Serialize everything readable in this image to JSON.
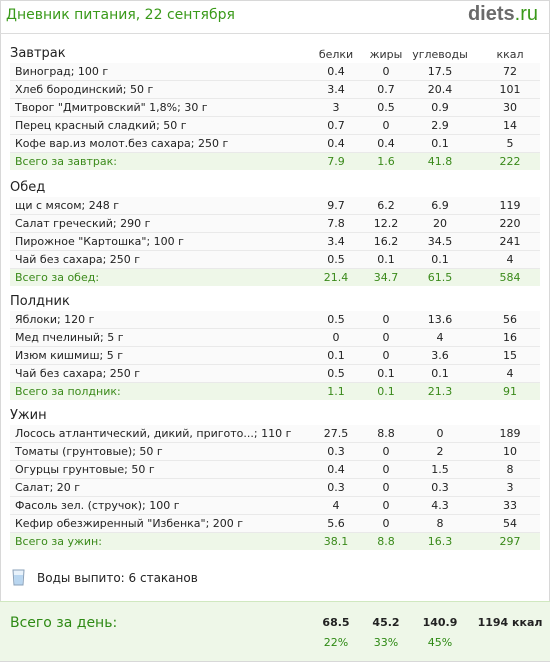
{
  "title": "Дневник питания, 22 сентября",
  "logo": {
    "name": "diets",
    "tld": ".ru"
  },
  "columns": {
    "protein": "белки",
    "fat": "жиры",
    "carbs": "углеводы",
    "kcal": "ккал"
  },
  "meals": [
    {
      "title": "Завтрак",
      "items": [
        {
          "name": "Виноград; 100 г",
          "protein": "0.4",
          "fat": "0",
          "carbs": "17.5",
          "kcal": "72"
        },
        {
          "name": "Хлеб бородинский; 50 г",
          "protein": "3.4",
          "fat": "0.7",
          "carbs": "20.4",
          "kcal": "101"
        },
        {
          "name": "Творог \"Дмитровский\" 1,8%; 30 г",
          "protein": "3",
          "fat": "0.5",
          "carbs": "0.9",
          "kcal": "30"
        },
        {
          "name": "Перец красный сладкий; 50 г",
          "protein": "0.7",
          "fat": "0",
          "carbs": "2.9",
          "kcal": "14"
        },
        {
          "name": "Кофе вар.из молот.без сахара; 250 г",
          "protein": "0.4",
          "fat": "0.4",
          "carbs": "0.1",
          "kcal": "5"
        }
      ],
      "total": {
        "name": "Всего за завтрак:",
        "protein": "7.9",
        "fat": "1.6",
        "carbs": "41.8",
        "kcal": "222"
      }
    },
    {
      "title": "Обед",
      "items": [
        {
          "name": "щи с мясом; 248 г",
          "protein": "9.7",
          "fat": "6.2",
          "carbs": "6.9",
          "kcal": "119"
        },
        {
          "name": "Салат греческий; 290 г",
          "protein": "7.8",
          "fat": "12.2",
          "carbs": "20",
          "kcal": "220"
        },
        {
          "name": "Пирожное \"Картошка\"; 100 г",
          "protein": "3.4",
          "fat": "16.2",
          "carbs": "34.5",
          "kcal": "241"
        },
        {
          "name": "Чай без сахара; 250 г",
          "protein": "0.5",
          "fat": "0.1",
          "carbs": "0.1",
          "kcal": "4"
        }
      ],
      "total": {
        "name": "Всего за обед:",
        "protein": "21.4",
        "fat": "34.7",
        "carbs": "61.5",
        "kcal": "584"
      }
    },
    {
      "title": "Полдник",
      "items": [
        {
          "name": "Яблоки; 120 г",
          "protein": "0.5",
          "fat": "0",
          "carbs": "13.6",
          "kcal": "56"
        },
        {
          "name": "Мед пчелиный; 5 г",
          "protein": "0",
          "fat": "0",
          "carbs": "4",
          "kcal": "16"
        },
        {
          "name": "Изюм кишмиш; 5 г",
          "protein": "0.1",
          "fat": "0",
          "carbs": "3.6",
          "kcal": "15"
        },
        {
          "name": "Чай без сахара; 250 г",
          "protein": "0.5",
          "fat": "0.1",
          "carbs": "0.1",
          "kcal": "4"
        }
      ],
      "total": {
        "name": "Всего за полдник:",
        "protein": "1.1",
        "fat": "0.1",
        "carbs": "21.3",
        "kcal": "91"
      }
    },
    {
      "title": "Ужин",
      "items": [
        {
          "name": "Лосось атлантический, дикий, пригото...; 110 г",
          "protein": "27.5",
          "fat": "8.8",
          "carbs": "0",
          "kcal": "189"
        },
        {
          "name": "Томаты (грунтовые); 50 г",
          "protein": "0.3",
          "fat": "0",
          "carbs": "2",
          "kcal": "10"
        },
        {
          "name": "Огурцы грунтовые; 50 г",
          "protein": "0.4",
          "fat": "0",
          "carbs": "1.5",
          "kcal": "8"
        },
        {
          "name": "Салат; 20 г",
          "protein": "0.3",
          "fat": "0",
          "carbs": "0.3",
          "kcal": "3"
        },
        {
          "name": "Фасоль зел. (стручок); 100 г",
          "protein": "4",
          "fat": "0",
          "carbs": "4.3",
          "kcal": "33"
        },
        {
          "name": "Кефир обезжиренный \"Избенка\"; 200 г",
          "protein": "5.6",
          "fat": "0",
          "carbs": "8",
          "kcal": "54"
        }
      ],
      "total": {
        "name": "Всего за ужин:",
        "protein": "38.1",
        "fat": "8.8",
        "carbs": "16.3",
        "kcal": "297"
      }
    }
  ],
  "water": {
    "icon": "water-glass-icon",
    "text": "Воды выпито: 6 стаканов"
  },
  "day": {
    "label": "Всего за день:",
    "protein": "68.5",
    "fat": "45.2",
    "carbs": "140.9",
    "kcal": "1194 ккал",
    "protein_pct": "22%",
    "fat_pct": "33%",
    "carbs_pct": "45%"
  },
  "colors": {
    "accent": "#3a9a1a",
    "total_bg": "#eef7e8",
    "logo_gray": "#6b6b6b"
  }
}
